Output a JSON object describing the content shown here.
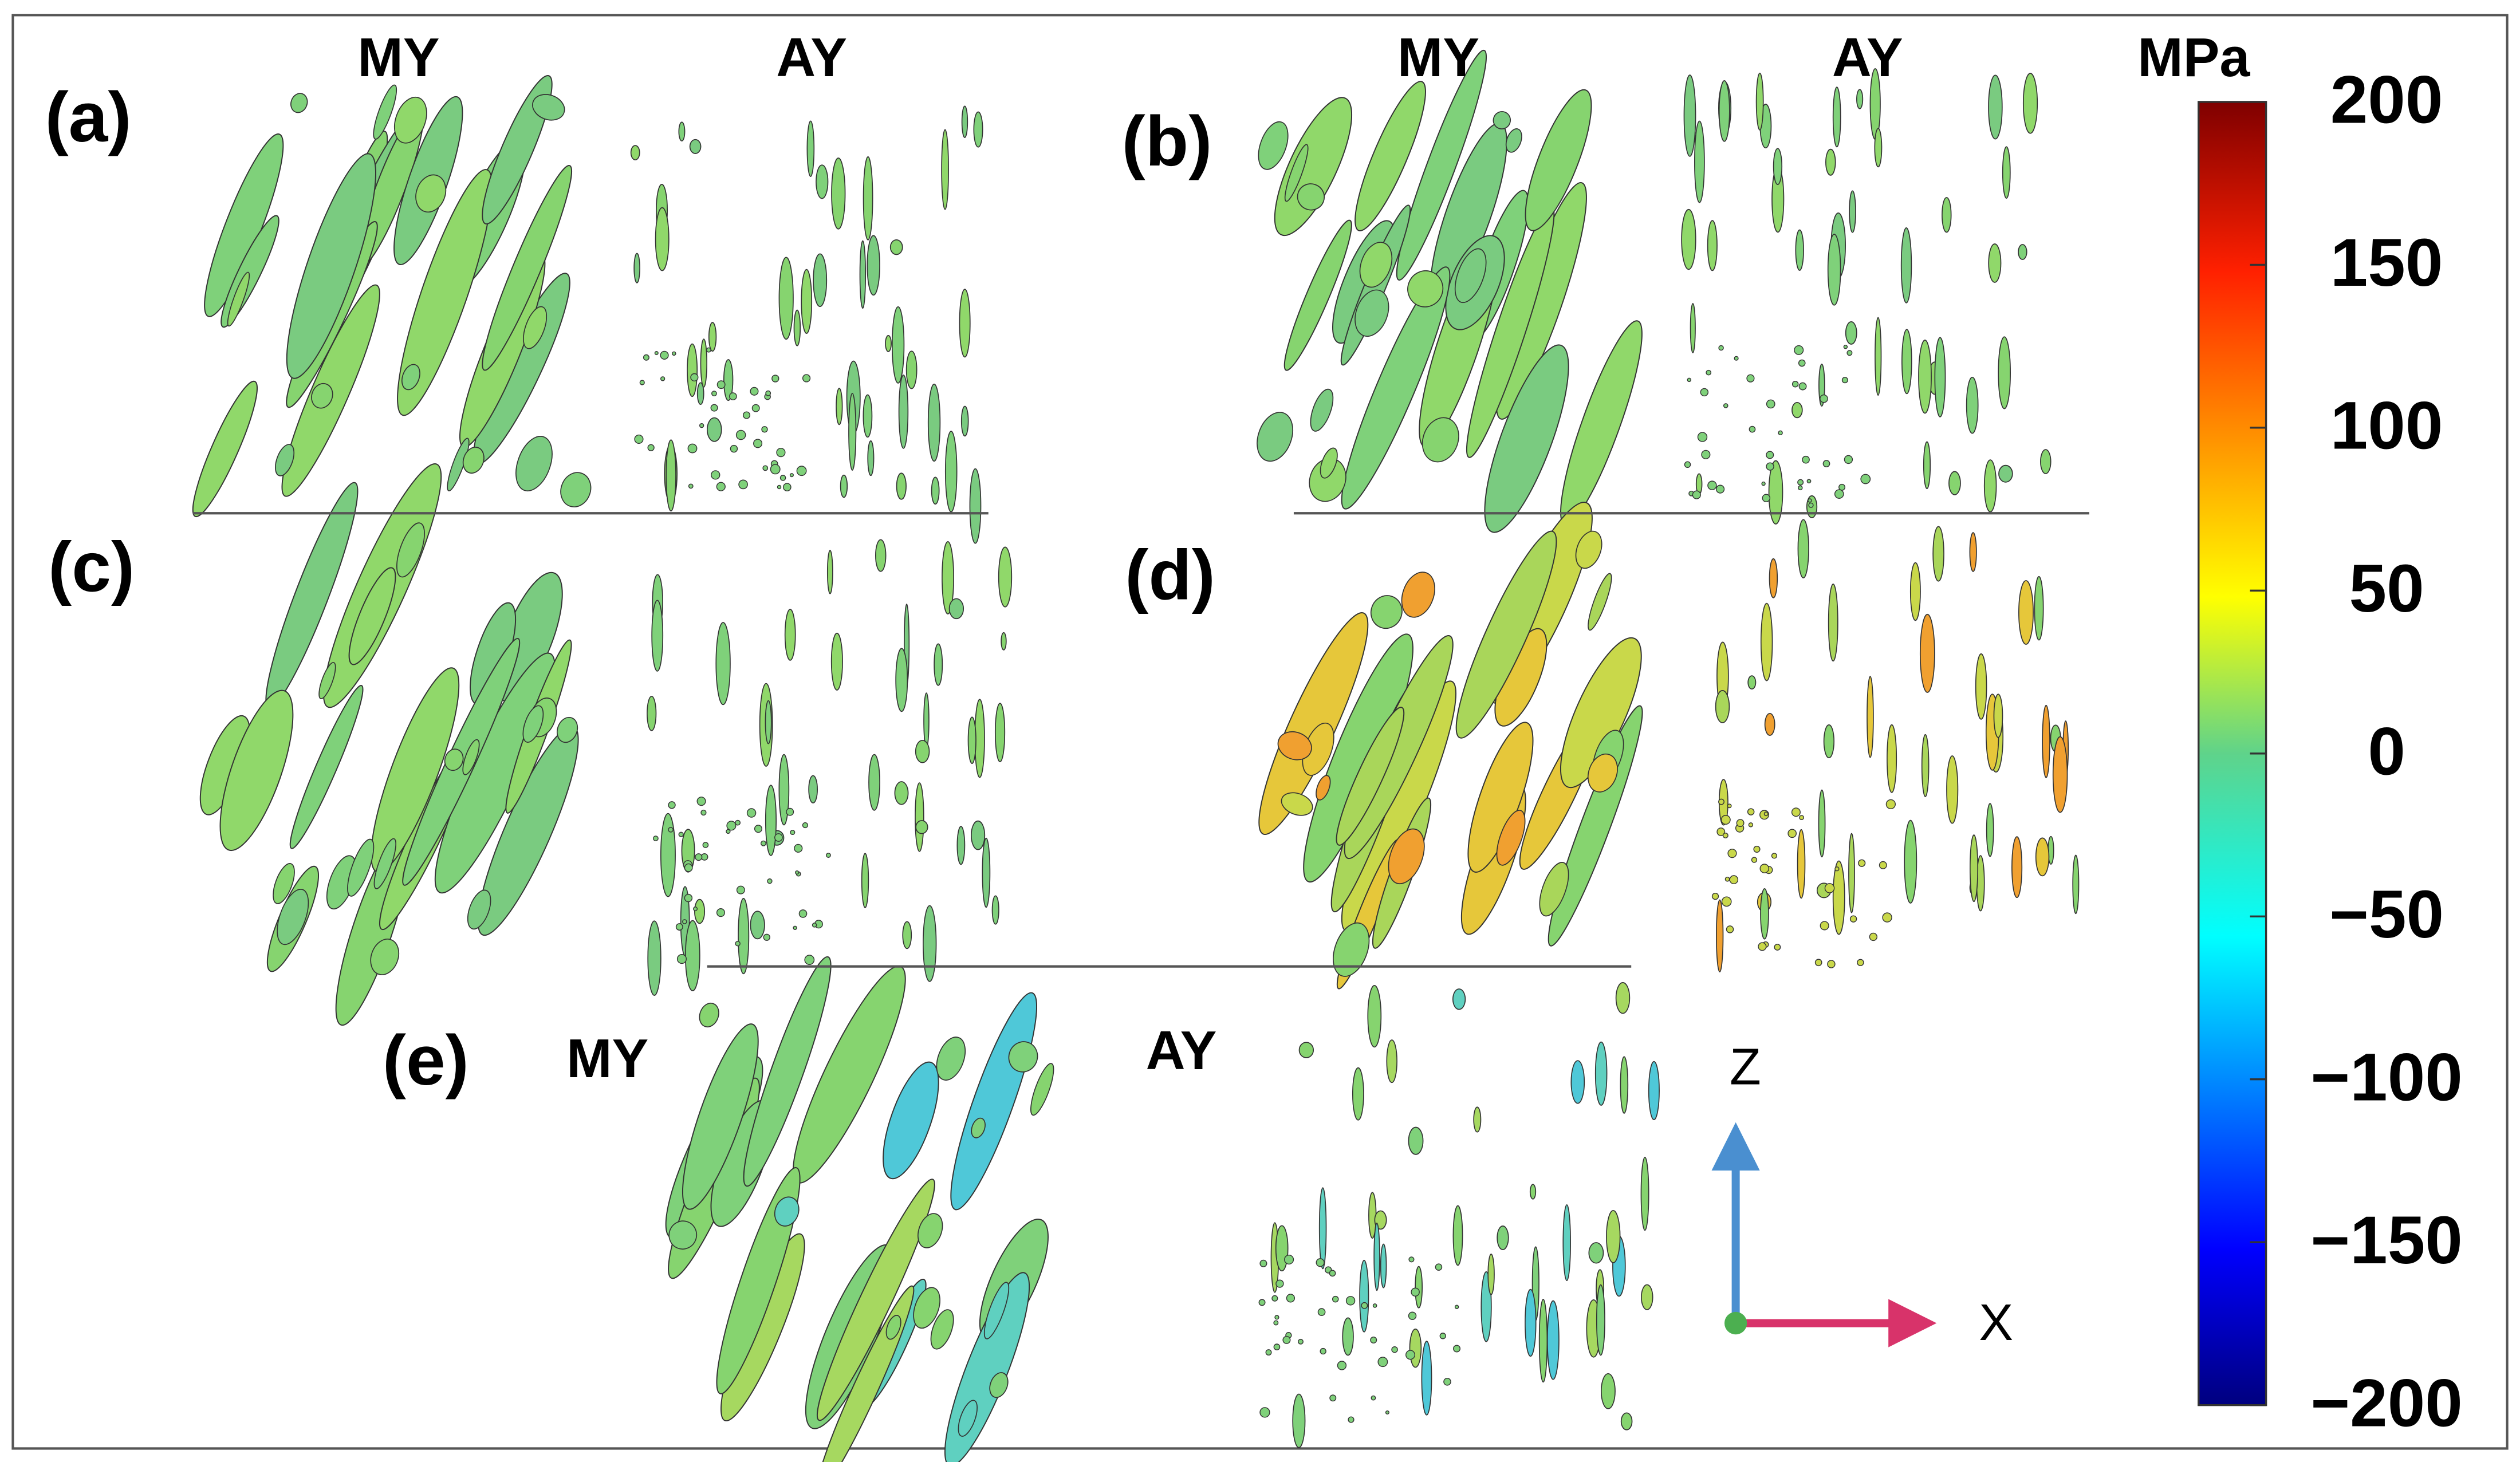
{
  "panels": [
    {
      "label": "(a)",
      "left_title": "MY",
      "right_title": "AY"
    },
    {
      "label": "(b)",
      "left_title": "MY",
      "right_title": "AY"
    },
    {
      "label": "(c)"
    },
    {
      "label": "(d)"
    },
    {
      "label": "(e)",
      "left_title": "MY",
      "right_title": "AY"
    }
  ],
  "axes_triad": {
    "z": "Z",
    "x": "X"
  },
  "colorbar": {
    "unit": "MPa",
    "lim": [
      -200,
      200
    ],
    "ticks": [
      200,
      150,
      100,
      50,
      0,
      {
        "value": -50,
        "label": "−50"
      },
      {
        "value": -100,
        "label": "−100"
      },
      {
        "value": -150,
        "label": "−150"
      },
      {
        "value": -200,
        "label": "−200"
      }
    ]
  }
}
